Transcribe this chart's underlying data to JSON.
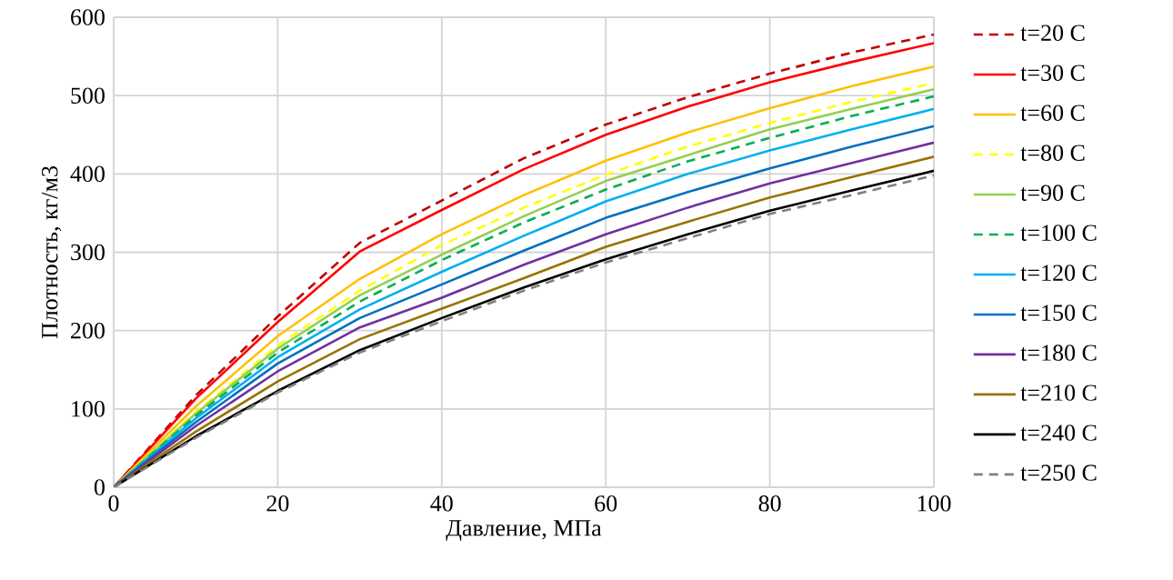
{
  "chart_data": {
    "type": "line",
    "xlabel": "Давление, МПа",
    "ylabel": "Плотность, кг/м3",
    "x": [
      0,
      10,
      20,
      30,
      40,
      50,
      60,
      70,
      80,
      90,
      100
    ],
    "xlim": [
      0,
      100
    ],
    "xticks": [
      0,
      20,
      40,
      60,
      80,
      100
    ],
    "ylim": [
      0,
      600
    ],
    "yticks": [
      0,
      100,
      200,
      300,
      400,
      500,
      600
    ],
    "grid": true,
    "legend": "right",
    "marker": "none",
    "series": [
      {
        "name": "t=20 C",
        "color": "#c00000",
        "line_style": "dashed",
        "values": [
          0,
          117,
          218,
          312,
          366,
          420,
          463,
          498,
          528,
          555,
          578
        ]
      },
      {
        "name": "t=30 C",
        "color": "#ff0000",
        "line_style": "solid",
        "values": [
          0,
          113,
          211,
          301,
          354,
          406,
          450,
          486,
          517,
          543,
          567
        ]
      },
      {
        "name": "t=60 C",
        "color": "#ffc000",
        "line_style": "solid",
        "values": [
          0,
          103,
          193,
          266,
          323,
          373,
          417,
          453,
          484,
          512,
          537
        ]
      },
      {
        "name": "t=80 C",
        "color": "#ffff00",
        "line_style": "dashed",
        "values": [
          0,
          96,
          181,
          251,
          309,
          357,
          399,
          435,
          465,
          492,
          516
        ]
      },
      {
        "name": "t=90 C",
        "color": "#92d050",
        "line_style": "solid",
        "values": [
          0,
          94,
          177,
          245,
          297,
          346,
          391,
          424,
          457,
          483,
          508
        ]
      },
      {
        "name": "t=100 C",
        "color": "#00b050",
        "line_style": "dashed",
        "values": [
          0,
          91,
          172,
          237,
          290,
          338,
          380,
          416,
          446,
          474,
          499
        ]
      },
      {
        "name": "t=120 C",
        "color": "#00b0f0",
        "line_style": "solid",
        "values": [
          0,
          88,
          166,
          227,
          275,
          321,
          365,
          400,
          430,
          457,
          483
        ]
      },
      {
        "name": "t=150 C",
        "color": "#0070c0",
        "line_style": "solid",
        "values": [
          0,
          83,
          158,
          216,
          259,
          302,
          344,
          377,
          407,
          435,
          461
        ]
      },
      {
        "name": "t=180 C",
        "color": "#7030a0",
        "line_style": "solid",
        "values": [
          0,
          78,
          148,
          204,
          242,
          284,
          323,
          357,
          388,
          414,
          440
        ]
      },
      {
        "name": "t=210 C",
        "color": "#997300",
        "line_style": "solid",
        "values": [
          0,
          71,
          135,
          189,
          228,
          267,
          307,
          339,
          370,
          396,
          422
        ]
      },
      {
        "name": "t=240 C",
        "color": "#000000",
        "line_style": "solid",
        "values": [
          0,
          65,
          123,
          175,
          216,
          255,
          291,
          323,
          353,
          379,
          404
        ]
      },
      {
        "name": "t=250 C",
        "color": "#808080",
        "line_style": "dashed",
        "values": [
          0,
          63,
          121,
          172,
          212,
          251,
          287,
          318,
          349,
          373,
          398
        ]
      }
    ]
  }
}
